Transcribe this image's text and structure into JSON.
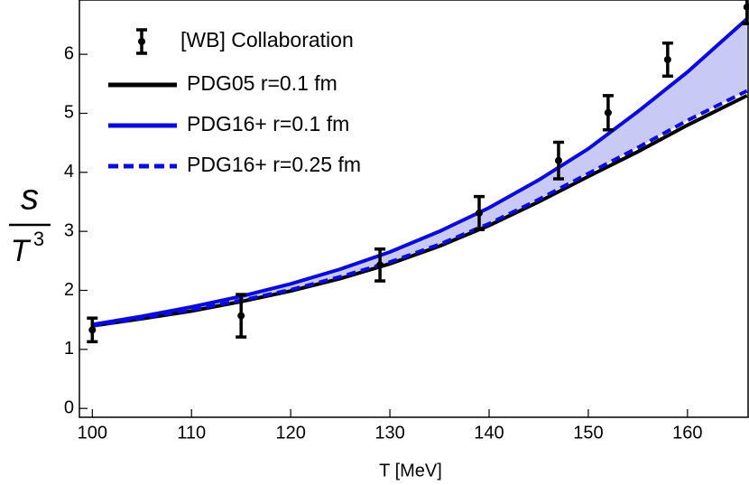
{
  "chart_data": {
    "type": "line",
    "xlabel": "T [MeV]",
    "ylabel": {
      "numerator": "s",
      "denominator": "T",
      "superscript": "3"
    },
    "xlim": [
      98.7,
      166.2
    ],
    "ylim": [
      -0.15,
      6.92
    ],
    "xticks": [
      100,
      110,
      120,
      130,
      140,
      150,
      160
    ],
    "yticks": [
      0,
      1,
      2,
      3,
      4,
      5,
      6
    ],
    "band_color": "#c9c9f5",
    "points": {
      "name": "[WB] Collaboration",
      "color": "#000000",
      "x": [
        100,
        115,
        129,
        139,
        147,
        152,
        158,
        166
      ],
      "values": [
        1.33,
        1.57,
        2.43,
        3.31,
        4.2,
        5.01,
        5.91,
        6.8
      ],
      "errors": [
        0.2,
        0.36,
        0.27,
        0.28,
        0.31,
        0.29,
        0.28,
        0.28
      ]
    },
    "x": [
      100,
      105,
      110,
      115,
      120,
      125,
      130,
      135,
      140,
      145,
      150,
      155,
      160,
      166
    ],
    "series": [
      {
        "name": "PDG05 r=0.1 fm",
        "color": "#000000",
        "dash": false,
        "values": [
          1.4,
          1.52,
          1.65,
          1.81,
          1.99,
          2.2,
          2.45,
          2.75,
          3.1,
          3.5,
          3.93,
          4.35,
          4.8,
          5.3
        ]
      },
      {
        "name": "PDG16+ r=0.1 fm",
        "color": "#0a0adc",
        "dash": false,
        "values": [
          1.42,
          1.56,
          1.72,
          1.9,
          2.11,
          2.36,
          2.65,
          3.0,
          3.4,
          3.87,
          4.4,
          5.03,
          5.7,
          6.6
        ]
      },
      {
        "name": "PDG16+ r=0.25 fm",
        "color": "#0a0adc",
        "dash": true,
        "values": [
          1.4,
          1.53,
          1.67,
          1.83,
          2.01,
          2.23,
          2.48,
          2.78,
          3.13,
          3.54,
          3.98,
          4.42,
          4.88,
          5.38
        ]
      }
    ]
  }
}
